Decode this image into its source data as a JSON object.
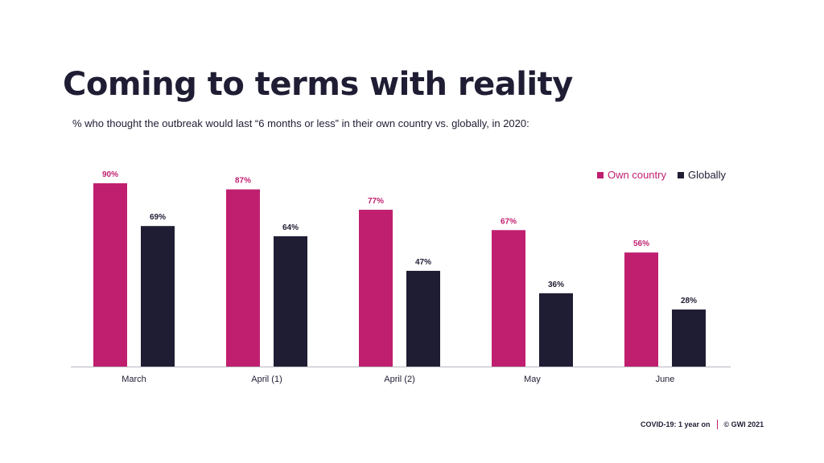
{
  "title": "Coming to terms with reality",
  "subtitle": "% who thought the outbreak would last “6 months or less” in their own country vs. globally, in 2020:",
  "colors": {
    "own": "#c01f6f",
    "global": "#1f1d33",
    "text": "#1f1d33"
  },
  "legend": {
    "own_label": "Own country",
    "global_label": "Globally"
  },
  "footer": {
    "left": "COVID-19: 1 year on",
    "right": "© GWI 2021"
  },
  "chart_data": {
    "type": "bar",
    "categories": [
      "March",
      "April (1)",
      "April (2)",
      "May",
      "June"
    ],
    "series": [
      {
        "name": "Own country",
        "values": [
          90,
          87,
          77,
          67,
          56
        ]
      },
      {
        "name": "Globally",
        "values": [
          69,
          64,
          47,
          36,
          28
        ]
      }
    ],
    "value_suffix": "%",
    "ylim": [
      0,
      90
    ],
    "grid": false,
    "legend_position": "top-right"
  }
}
